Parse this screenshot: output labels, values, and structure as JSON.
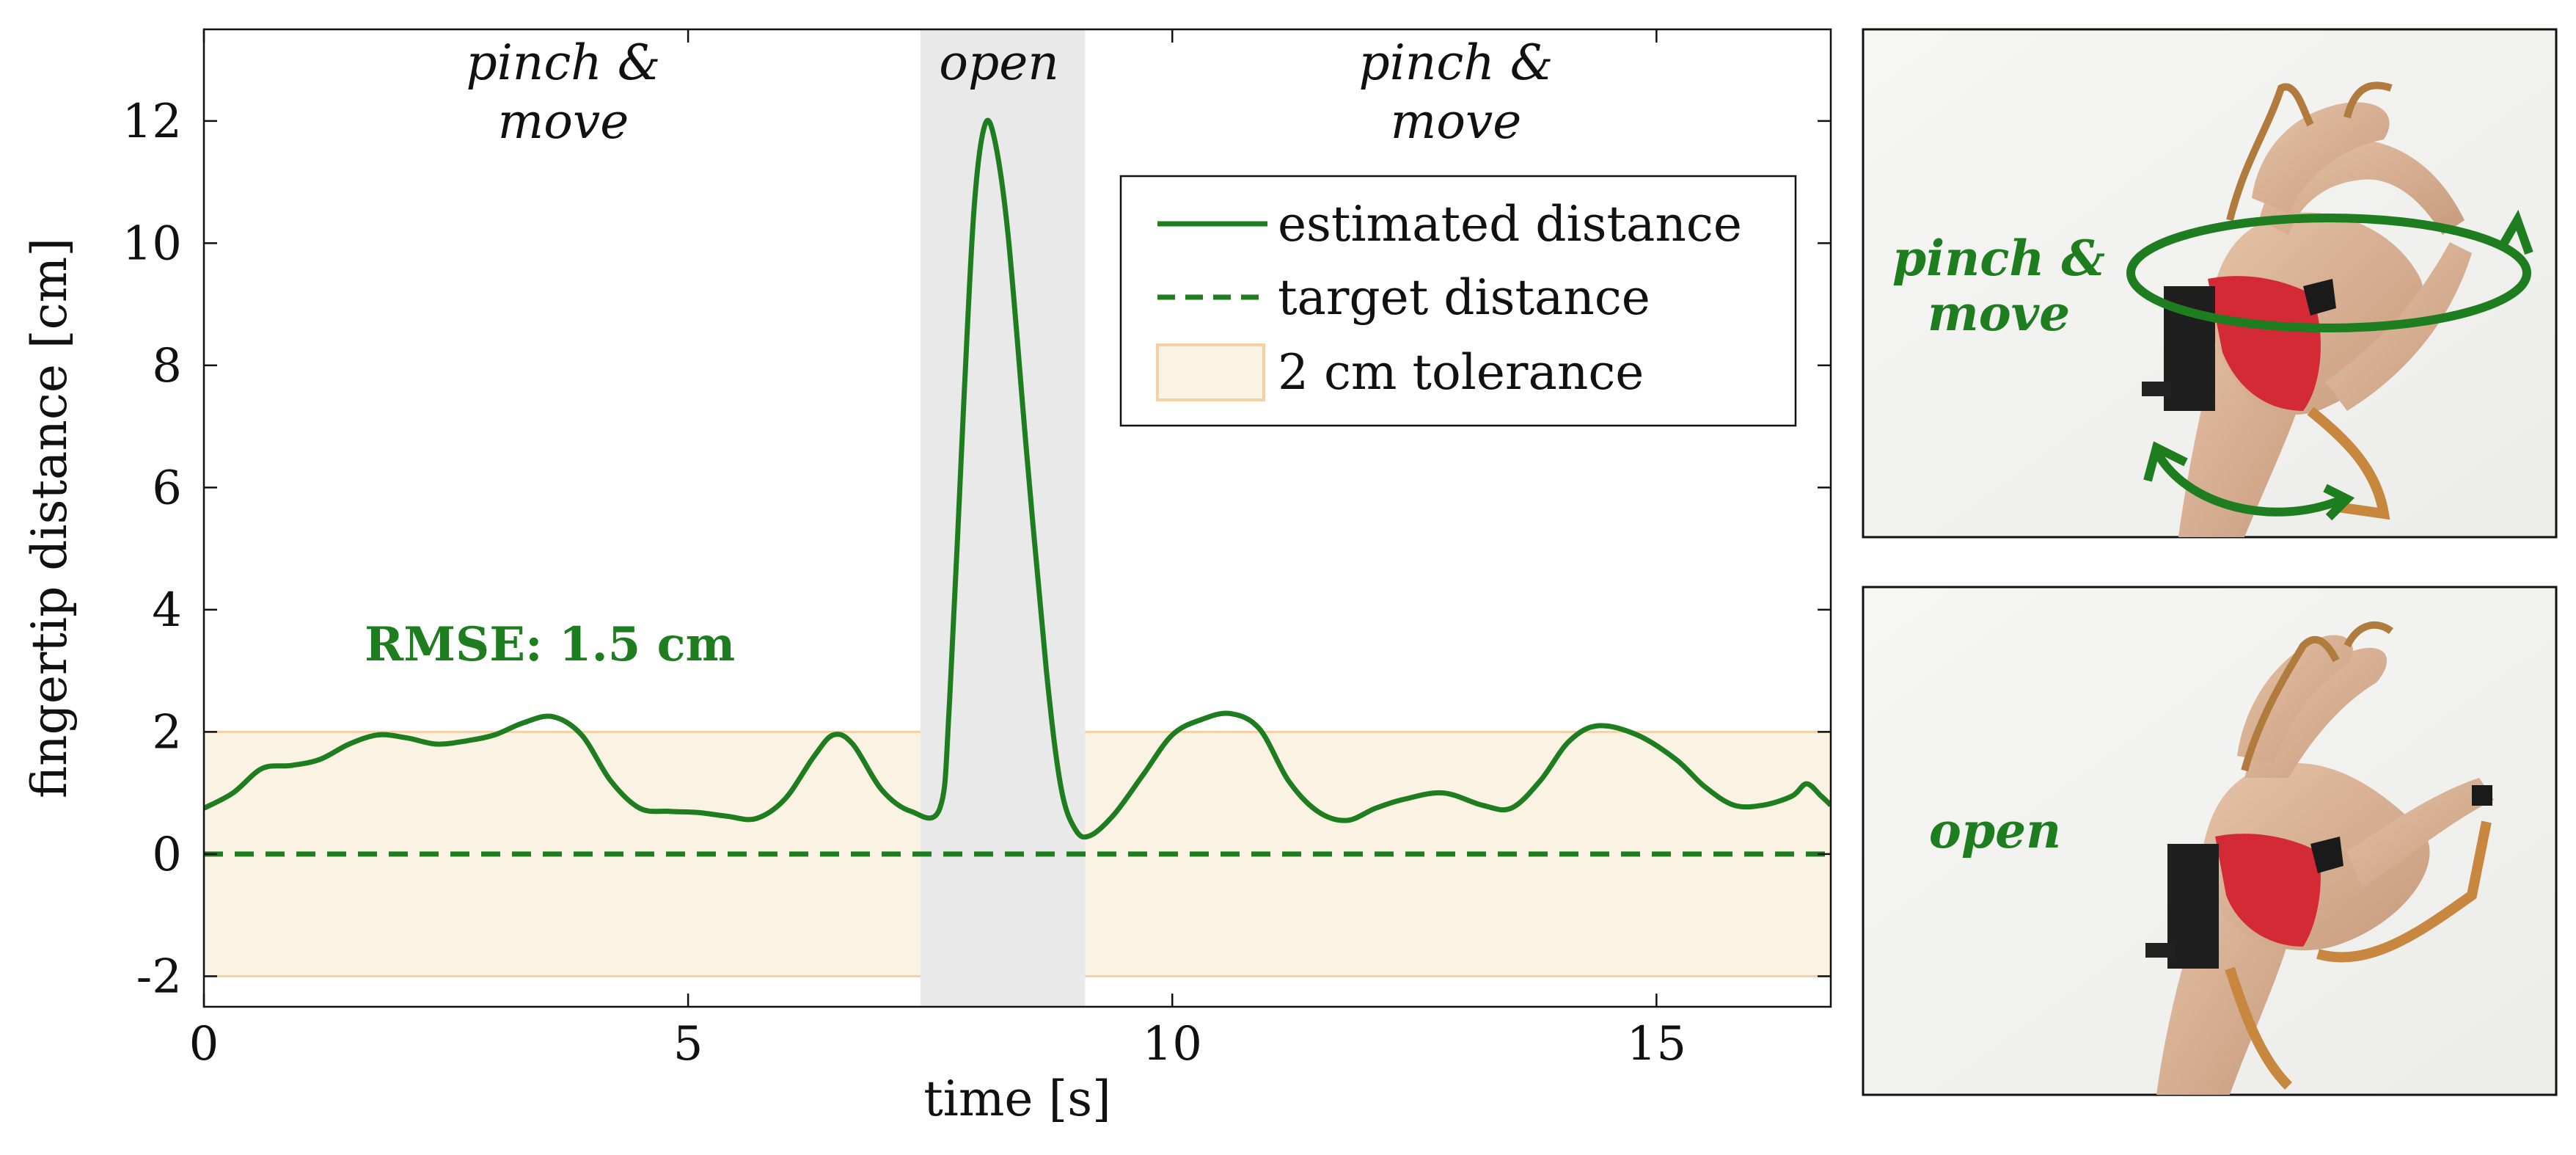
{
  "chart_data": {
    "type": "line",
    "xlabel": "time [s]",
    "ylabel": "fingertip distance [cm]",
    "xlim": [
      0,
      16.8
    ],
    "ylim": [
      -2.5,
      13.5
    ],
    "xticks": [
      0,
      5,
      10,
      15
    ],
    "yticks": [
      -2,
      0,
      2,
      4,
      6,
      8,
      10,
      12
    ],
    "xtick_labels": [
      "0",
      "5",
      "10",
      "15"
    ],
    "ytick_labels": [
      "-2",
      "0",
      "2",
      "4",
      "6",
      "8",
      "10",
      "12"
    ],
    "grid": false,
    "legend_position": "top-right",
    "series": [
      {
        "name": "estimated distance",
        "style": "solid",
        "points": [
          [
            0,
            0.75
          ],
          [
            0.3,
            1.0
          ],
          [
            0.6,
            1.4
          ],
          [
            0.9,
            1.45
          ],
          [
            1.2,
            1.55
          ],
          [
            1.5,
            1.8
          ],
          [
            1.8,
            1.95
          ],
          [
            2.1,
            1.9
          ],
          [
            2.4,
            1.8
          ],
          [
            2.7,
            1.85
          ],
          [
            3.0,
            1.95
          ],
          [
            3.3,
            2.15
          ],
          [
            3.6,
            2.25
          ],
          [
            3.9,
            1.95
          ],
          [
            4.2,
            1.2
          ],
          [
            4.5,
            0.75
          ],
          [
            4.8,
            0.7
          ],
          [
            5.1,
            0.68
          ],
          [
            5.4,
            0.62
          ],
          [
            5.7,
            0.58
          ],
          [
            6.0,
            0.9
          ],
          [
            6.3,
            1.6
          ],
          [
            6.5,
            1.95
          ],
          [
            6.7,
            1.8
          ],
          [
            7.0,
            1.05
          ],
          [
            7.3,
            0.7
          ],
          [
            7.6,
            0.75
          ],
          [
            7.7,
            2.5
          ],
          [
            7.85,
            7.5
          ],
          [
            7.95,
            10.5
          ],
          [
            8.05,
            11.85
          ],
          [
            8.15,
            11.8
          ],
          [
            8.3,
            10.2
          ],
          [
            8.5,
            6.5
          ],
          [
            8.7,
            3.0
          ],
          [
            8.85,
            1.1
          ],
          [
            9.0,
            0.4
          ],
          [
            9.15,
            0.3
          ],
          [
            9.4,
            0.65
          ],
          [
            9.7,
            1.3
          ],
          [
            10.0,
            1.95
          ],
          [
            10.3,
            2.2
          ],
          [
            10.6,
            2.3
          ],
          [
            10.9,
            2.05
          ],
          [
            11.2,
            1.2
          ],
          [
            11.5,
            0.7
          ],
          [
            11.8,
            0.55
          ],
          [
            12.1,
            0.75
          ],
          [
            12.4,
            0.9
          ],
          [
            12.8,
            1.0
          ],
          [
            13.2,
            0.8
          ],
          [
            13.5,
            0.75
          ],
          [
            13.8,
            1.2
          ],
          [
            14.1,
            1.85
          ],
          [
            14.4,
            2.1
          ],
          [
            14.8,
            1.95
          ],
          [
            15.2,
            1.55
          ],
          [
            15.5,
            1.1
          ],
          [
            15.8,
            0.8
          ],
          [
            16.1,
            0.8
          ],
          [
            16.4,
            0.95
          ],
          [
            16.55,
            1.15
          ],
          [
            16.7,
            0.95
          ],
          [
            16.8,
            0.8
          ]
        ]
      },
      {
        "name": "target distance",
        "style": "dashed",
        "points": [
          [
            0,
            0
          ],
          [
            16.8,
            0
          ]
        ]
      }
    ],
    "tolerance_band": {
      "label": "2 cm tolerance",
      "y_range": [
        -2,
        2
      ]
    },
    "shaded_region": {
      "label": "open",
      "x_range": [
        7.4,
        9.1
      ]
    },
    "annotations": {
      "left_phase": [
        "pinch &",
        "move"
      ],
      "middle_phase": "open",
      "right_phase": [
        "pinch &",
        "move"
      ],
      "rmse": "RMSE: 1.5 cm"
    }
  },
  "photos": {
    "top": {
      "caption": [
        "pinch &",
        "move"
      ]
    },
    "bottom": {
      "caption": "open"
    }
  },
  "colors": {
    "line": "#1e7d1e",
    "band": "#faf2e3",
    "band_edge": "#f3d1a4",
    "shade": "#e9e9e9",
    "annotation_green": "#1e7d1e"
  }
}
